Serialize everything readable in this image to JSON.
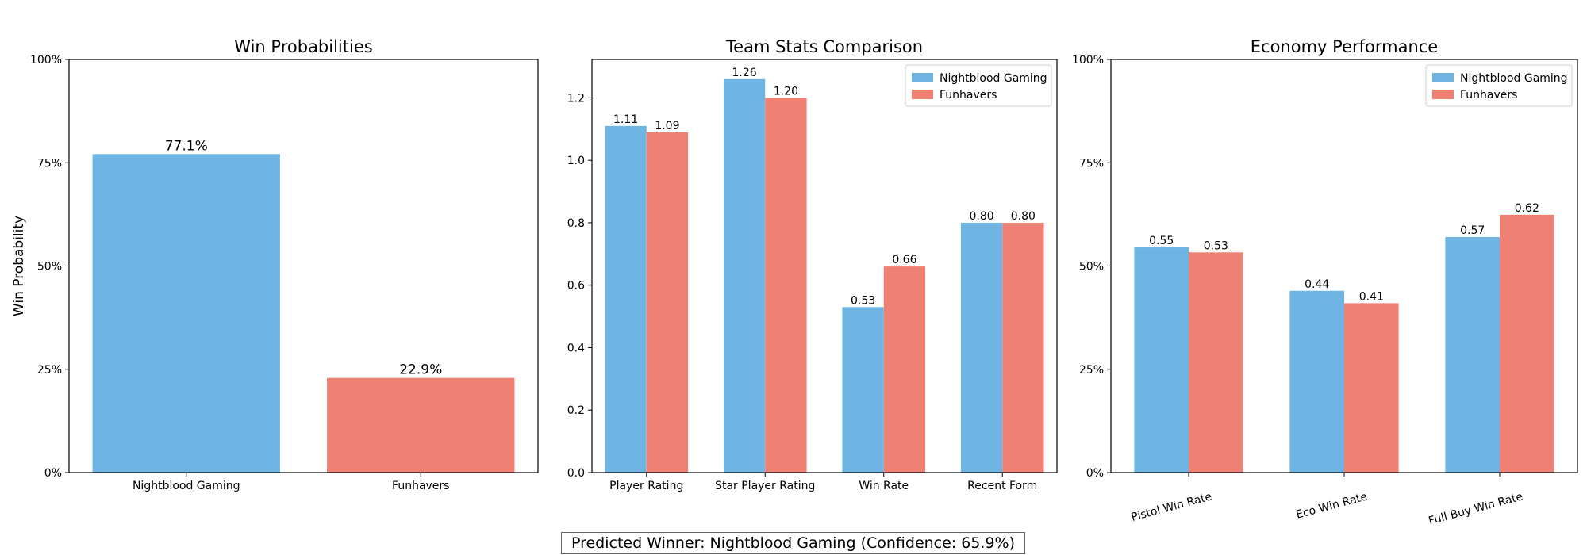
{
  "chart_data": [
    {
      "type": "bar",
      "title": "Win Probabilities",
      "ylabel": "Win Probability",
      "xlabel": "",
      "categories": [
        "Nightblood Gaming",
        "Funhavers"
      ],
      "values": [
        0.771,
        0.229
      ],
      "value_labels": [
        "77.1%",
        "22.9%"
      ],
      "colors": [
        "#6fb5e3",
        "#ee8174"
      ],
      "ylim": [
        0,
        1
      ],
      "yticks": [
        0,
        0.25,
        0.5,
        0.75,
        1
      ],
      "ytick_labels": [
        "0%",
        "25%",
        "50%",
        "75%",
        "100%"
      ],
      "grid": false
    },
    {
      "type": "bar",
      "title": "Team Stats Comparison",
      "xlabel": "",
      "ylabel": "",
      "categories": [
        "Player Rating",
        "Star Player Rating",
        "Win Rate",
        "Recent Form"
      ],
      "series": [
        {
          "name": "Nightblood Gaming",
          "values": [
            1.11,
            1.26,
            0.53,
            0.8
          ],
          "labels": [
            "1.11",
            "1.26",
            "0.53",
            "0.80"
          ],
          "color": "#6fb5e3"
        },
        {
          "name": "Funhavers",
          "values": [
            1.09,
            1.2,
            0.66,
            0.8
          ],
          "labels": [
            "1.09",
            "1.20",
            "0.66",
            "0.80"
          ],
          "color": "#ee8174"
        }
      ],
      "ylim": [
        0,
        1.323
      ],
      "yticks": [
        0,
        0.2,
        0.4,
        0.6,
        0.8,
        1.0,
        1.2
      ],
      "ytick_labels": [
        "0.0",
        "0.2",
        "0.4",
        "0.6",
        "0.8",
        "1.0",
        "1.2"
      ],
      "legend": "top-right",
      "grid": false
    },
    {
      "type": "bar",
      "title": "Economy Performance",
      "xlabel": "",
      "ylabel": "",
      "categories": [
        "Pistol Win Rate",
        "Eco Win Rate",
        "Full Buy Win Rate"
      ],
      "series": [
        {
          "name": "Nightblood Gaming",
          "values": [
            0.545,
            0.44,
            0.57
          ],
          "labels": [
            "0.55",
            "0.44",
            "0.57"
          ],
          "color": "#6fb5e3"
        },
        {
          "name": "Funhavers",
          "values": [
            0.533,
            0.41,
            0.624
          ],
          "labels": [
            "0.53",
            "0.41",
            "0.62"
          ],
          "color": "#ee8174"
        }
      ],
      "ylim": [
        0,
        1
      ],
      "yticks": [
        0,
        0.25,
        0.5,
        0.75,
        1
      ],
      "ytick_labels": [
        "0%",
        "25%",
        "50%",
        "75%",
        "100%"
      ],
      "xtick_rotation": 15,
      "legend": "top-right",
      "grid": false
    }
  ],
  "footer": {
    "text": "Predicted Winner: Nightblood Gaming (Confidence: 65.9%)"
  }
}
